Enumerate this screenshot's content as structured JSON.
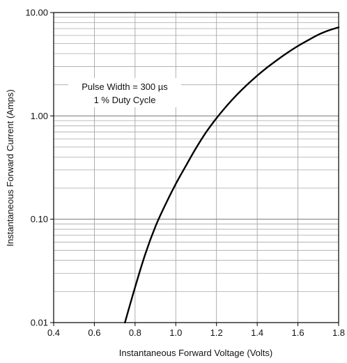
{
  "chart_data": {
    "type": "line",
    "title": "",
    "xlabel": "Instantaneous Forward Voltage (Volts)",
    "ylabel": "Instantaneous Forward Current (Amps)",
    "xlim": [
      0.4,
      1.8
    ],
    "ylim": [
      0.01,
      10
    ],
    "yscale": "log",
    "grid": true,
    "x_ticks": [
      0.4,
      0.6,
      0.8,
      1.0,
      1.2,
      1.4,
      1.6,
      1.8
    ],
    "x_tick_labels": [
      "0.4",
      "0.6",
      "0.8",
      "1.0",
      "1.2",
      "1.4",
      "1.6",
      "1.8"
    ],
    "y_tick_labels": [
      "0.01",
      "0.10",
      "1.00",
      "10.00"
    ],
    "y_ticks": [
      0.01,
      0.1,
      1,
      10
    ],
    "annotations": [
      "Pulse Width = 300 µs",
      "1 % Duty Cycle"
    ],
    "series": [
      {
        "color": "#000000",
        "x": [
          0.75,
          0.8,
          0.85,
          0.9,
          0.95,
          1.0,
          1.05,
          1.1,
          1.15,
          1.2,
          1.25,
          1.3,
          1.35,
          1.4,
          1.45,
          1.5,
          1.55,
          1.6,
          1.65,
          1.7,
          1.75,
          1.8
        ],
        "y": [
          0.01,
          0.022,
          0.046,
          0.085,
          0.14,
          0.22,
          0.33,
          0.49,
          0.7,
          0.95,
          1.25,
          1.6,
          2.0,
          2.45,
          2.95,
          3.5,
          4.1,
          4.75,
          5.4,
          6.1,
          6.7,
          7.2
        ]
      }
    ]
  }
}
